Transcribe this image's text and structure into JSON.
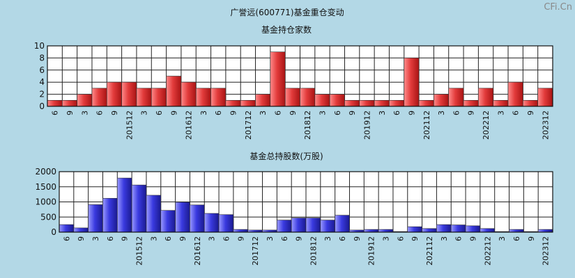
{
  "title": "广誉远(600771)基金重仓变动",
  "watermark": "CFi.Cn",
  "chart_data": [
    {
      "type": "bar",
      "title": "基金持仓家数",
      "ylim": [
        0,
        10
      ],
      "yticks": [
        0,
        2,
        4,
        6,
        8,
        10
      ],
      "color": "#e23b3b",
      "categories": [
        "6",
        "9",
        "3",
        "6",
        "9",
        "201512",
        "3",
        "6",
        "9",
        "201612",
        "3",
        "6",
        "9",
        "201712",
        "3",
        "6",
        "9",
        "201812",
        "3",
        "6",
        "9",
        "201912",
        "3",
        "6",
        "9",
        "202112",
        "3",
        "6",
        "9",
        "202212",
        "3",
        "6",
        "9",
        "202312"
      ],
      "values": [
        1,
        1,
        2,
        3,
        4,
        4,
        3,
        3,
        5,
        4,
        3,
        3,
        1,
        1,
        2,
        9,
        3,
        3,
        2,
        2,
        1,
        1,
        1,
        1,
        8,
        1,
        2,
        3,
        1,
        3,
        1,
        4,
        1,
        3
      ]
    },
    {
      "type": "bar",
      "title": "基金总持股数(万股)",
      "ylim": [
        0,
        2000
      ],
      "yticks": [
        0,
        500,
        1000,
        1500,
        2000
      ],
      "color": "#3a3ae0",
      "categories": [
        "6",
        "9",
        "3",
        "6",
        "9",
        "201512",
        "3",
        "6",
        "9",
        "201612",
        "3",
        "6",
        "9",
        "201712",
        "3",
        "6",
        "9",
        "201812",
        "3",
        "6",
        "9",
        "201912",
        "3",
        "6",
        "9",
        "202112",
        "3",
        "6",
        "9",
        "202212",
        "3",
        "6",
        "9",
        "202312"
      ],
      "values": [
        250,
        140,
        910,
        1120,
        1790,
        1560,
        1220,
        720,
        990,
        900,
        620,
        580,
        90,
        70,
        70,
        400,
        470,
        470,
        400,
        560,
        70,
        90,
        90,
        20,
        180,
        120,
        250,
        240,
        210,
        120,
        20,
        90,
        20,
        90
      ]
    }
  ]
}
